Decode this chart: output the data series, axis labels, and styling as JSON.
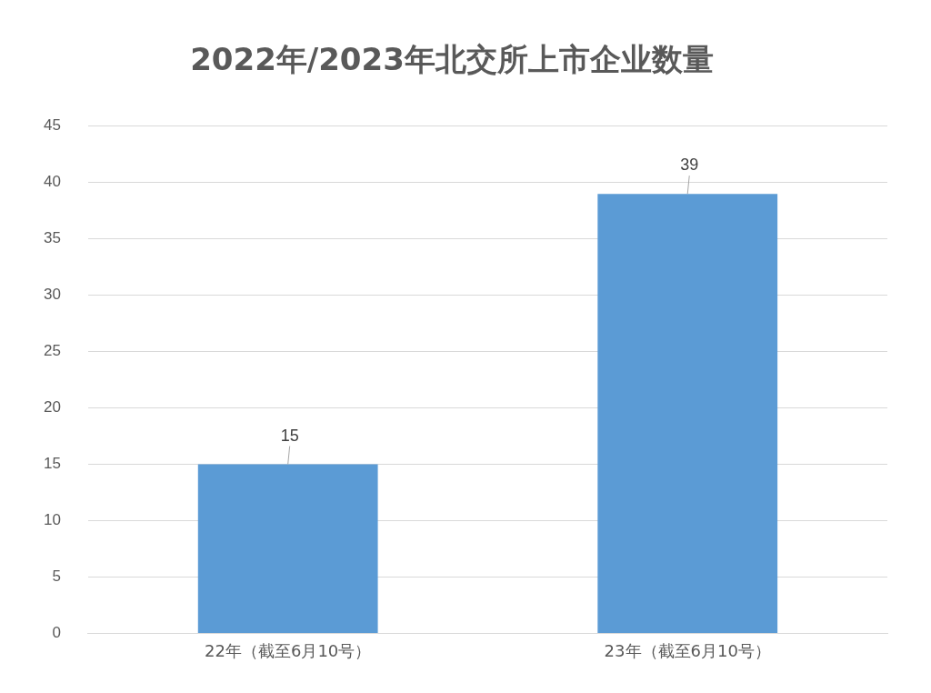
{
  "chart_data": {
    "type": "bar",
    "title": "2022年/2023年北交所上市企业数量",
    "categories": [
      "22年（截至6月10号）",
      "23年（截至6月10号）"
    ],
    "values": [
      15,
      39
    ],
    "color": "#5b9bd5",
    "ylim": [
      0,
      45
    ],
    "yticks": [
      0,
      5,
      10,
      15,
      20,
      25,
      30,
      35,
      40,
      45
    ],
    "grid": "y",
    "data_labels": true,
    "legend": false
  }
}
